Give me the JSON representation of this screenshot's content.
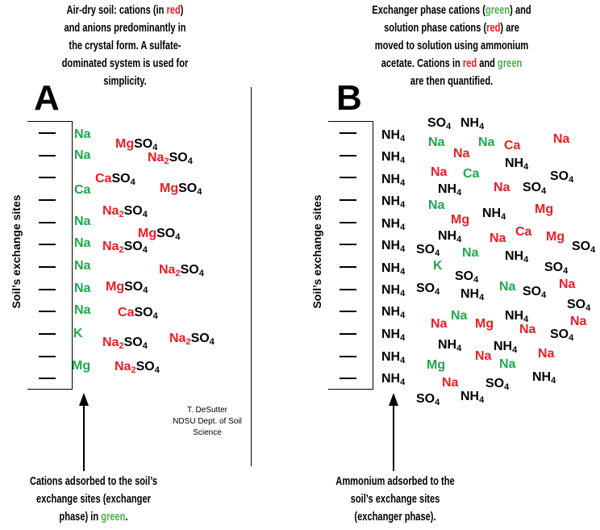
{
  "colors": {
    "red": "#ed1c24",
    "green": "#1ea84c",
    "black": "#000000",
    "green_text": "#4caf50"
  },
  "panel_a": {
    "letter": "A",
    "caption_top": [
      [
        [
          "Air-dry soil: cations (in ",
          "black"
        ],
        [
          "red",
          "red"
        ],
        [
          ")",
          "black"
        ]
      ],
      [
        [
          "and anions predominantly in",
          "black"
        ]
      ],
      [
        [
          "the crystal form. A sulfate-",
          "black"
        ]
      ],
      [
        [
          "dominated system is used for",
          "black"
        ]
      ],
      [
        [
          "simplicity.",
          "black"
        ]
      ]
    ],
    "axis_label": "Soil’s exchange sites",
    "caption_bottom": [
      [
        [
          "Cations adsorbed to the soil’s",
          "black"
        ]
      ],
      [
        [
          "exchange sites (exchanger",
          "black"
        ]
      ],
      [
        [
          "phase) in ",
          "black"
        ],
        [
          "green",
          "green_text"
        ],
        [
          ".",
          "black"
        ]
      ]
    ],
    "ions": [
      [
        [
          "Na",
          "green"
        ]
      ],
      [
        [
          "Mg",
          "red"
        ],
        [
          "SO",
          "black"
        ],
        [
          "4",
          "black",
          1
        ]
      ],
      [
        [
          "Na",
          "green"
        ]
      ],
      [
        [
          "Na",
          "red"
        ],
        [
          "2",
          "red",
          1
        ],
        [
          "SO",
          "black"
        ],
        [
          "4",
          "black",
          1
        ]
      ],
      [
        [
          "Ca",
          "red"
        ],
        [
          "SO",
          "black"
        ],
        [
          "4",
          "black",
          1
        ]
      ],
      [
        [
          "Ca",
          "green"
        ]
      ],
      [
        [
          "Mg",
          "red"
        ],
        [
          "SO",
          "black"
        ],
        [
          "4",
          "black",
          1
        ]
      ],
      [
        [
          "Na",
          "red"
        ],
        [
          "2",
          "red",
          1
        ],
        [
          "SO",
          "black"
        ],
        [
          "4",
          "black",
          1
        ]
      ],
      [
        [
          "Na",
          "green"
        ]
      ],
      [
        [
          "Mg",
          "red"
        ],
        [
          "SO",
          "black"
        ],
        [
          "4",
          "black",
          1
        ]
      ],
      [
        [
          "Na",
          "green"
        ]
      ],
      [
        [
          "Na",
          "red"
        ],
        [
          "2",
          "red",
          1
        ],
        [
          "SO",
          "black"
        ],
        [
          "4",
          "black",
          1
        ]
      ],
      [
        [
          "Na",
          "green"
        ]
      ],
      [
        [
          "Na",
          "red"
        ],
        [
          "2",
          "red",
          1
        ],
        [
          "SO",
          "black"
        ],
        [
          "4",
          "black",
          1
        ]
      ],
      [
        [
          "Na",
          "green"
        ]
      ],
      [
        [
          "Mg",
          "red"
        ],
        [
          "SO",
          "black"
        ],
        [
          "4",
          "black",
          1
        ]
      ],
      [
        [
          "Na",
          "green"
        ]
      ],
      [
        [
          "Ca",
          "red"
        ],
        [
          "SO",
          "black"
        ],
        [
          "4",
          "black",
          1
        ]
      ],
      [
        [
          "K",
          "green"
        ]
      ],
      [
        [
          "Na",
          "red"
        ],
        [
          "2",
          "red",
          1
        ],
        [
          "SO",
          "black"
        ],
        [
          "4",
          "black",
          1
        ]
      ],
      [
        [
          "Na",
          "red"
        ],
        [
          "2",
          "red",
          1
        ],
        [
          "SO",
          "black"
        ],
        [
          "4",
          "black",
          1
        ]
      ],
      [
        [
          "Mg",
          "green"
        ]
      ],
      [
        [
          "Na",
          "red"
        ],
        [
          "2",
          "red",
          1
        ],
        [
          "SO",
          "black"
        ],
        [
          "4",
          "black",
          1
        ]
      ]
    ]
  },
  "panel_b": {
    "letter": "B",
    "caption_top": [
      [
        [
          "Exchanger phase cations (",
          "black"
        ],
        [
          "green",
          "green_text"
        ],
        [
          ") and",
          "black"
        ]
      ],
      [
        [
          "solution phase cations (",
          "black"
        ],
        [
          "red",
          "red"
        ],
        [
          ") are",
          "black"
        ]
      ],
      [
        [
          "moved to solution using ammonium",
          "black"
        ]
      ],
      [
        [
          "acetate. Cations in ",
          "black"
        ],
        [
          "red",
          "red"
        ],
        [
          " and ",
          "black"
        ],
        [
          "green",
          "green_text"
        ]
      ],
      [
        [
          "are then quantified.",
          "black"
        ]
      ]
    ],
    "axis_label": "Soil’s exchange sites",
    "caption_bottom": [
      [
        [
          "Ammonium adsorbed to the",
          "black"
        ]
      ],
      [
        [
          "soil’s exchange sites",
          "black"
        ]
      ],
      [
        [
          "(exchanger phase).",
          "black"
        ]
      ]
    ],
    "adsorbed_ion": [
      [
        "NH",
        "black"
      ],
      [
        "4",
        "black",
        1
      ]
    ],
    "ions": [
      [
        [
          "SO",
          "black"
        ],
        [
          "4",
          "black",
          1
        ]
      ],
      [
        [
          "NH",
          "black"
        ],
        [
          "4",
          "black",
          1
        ]
      ],
      [
        [
          "Na",
          "green"
        ]
      ],
      [
        [
          "Na",
          "red"
        ]
      ],
      [
        [
          "Na",
          "green"
        ]
      ],
      [
        [
          "Ca",
          "red"
        ]
      ],
      [
        [
          "Na",
          "red"
        ]
      ],
      [
        [
          "NH",
          "black"
        ],
        [
          "4",
          "black",
          1
        ]
      ],
      [
        [
          "Na",
          "red"
        ]
      ],
      [
        [
          "Ca",
          "green"
        ]
      ],
      [
        [
          "SO",
          "black"
        ],
        [
          "4",
          "black",
          1
        ]
      ],
      [
        [
          "NH",
          "black"
        ],
        [
          "4",
          "black",
          1
        ]
      ],
      [
        [
          "Na",
          "red"
        ]
      ],
      [
        [
          "SO",
          "black"
        ],
        [
          "4",
          "black",
          1
        ]
      ],
      [
        [
          "Na",
          "green"
        ]
      ],
      [
        [
          "Mg",
          "red"
        ]
      ],
      [
        [
          "Mg",
          "red"
        ]
      ],
      [
        [
          "NH",
          "black"
        ],
        [
          "4",
          "black",
          1
        ]
      ],
      [
        [
          "NH",
          "black"
        ],
        [
          "4",
          "black",
          1
        ]
      ],
      [
        [
          "Ca",
          "red"
        ]
      ],
      [
        [
          "Na",
          "red"
        ]
      ],
      [
        [
          "Mg",
          "red"
        ]
      ],
      [
        [
          "SO",
          "black"
        ],
        [
          "4",
          "black",
          1
        ]
      ],
      [
        [
          "SO",
          "black"
        ],
        [
          "4",
          "black",
          1
        ]
      ],
      [
        [
          "Na",
          "green"
        ]
      ],
      [
        [
          "NH",
          "black"
        ],
        [
          "4",
          "black",
          1
        ]
      ],
      [
        [
          "K",
          "green"
        ]
      ],
      [
        [
          "SO",
          "black"
        ],
        [
          "4",
          "black",
          1
        ]
      ],
      [
        [
          "SO",
          "black"
        ],
        [
          "4",
          "black",
          1
        ]
      ],
      [
        [
          "Na",
          "green"
        ]
      ],
      [
        [
          "SO",
          "black"
        ],
        [
          "4",
          "black",
          1
        ]
      ],
      [
        [
          "Na",
          "red"
        ]
      ],
      [
        [
          "SO",
          "black"
        ],
        [
          "4",
          "black",
          1
        ]
      ],
      [
        [
          "NH",
          "black"
        ],
        [
          "4",
          "black",
          1
        ]
      ],
      [
        [
          "SO",
          "black"
        ],
        [
          "4",
          "black",
          1
        ]
      ],
      [
        [
          "Na",
          "green"
        ]
      ],
      [
        [
          "Na",
          "red"
        ]
      ],
      [
        [
          "Mg",
          "red"
        ]
      ],
      [
        [
          "NH",
          "black"
        ],
        [
          "4",
          "black",
          1
        ]
      ],
      [
        [
          "Na",
          "red"
        ]
      ],
      [
        [
          "Na",
          "red"
        ]
      ],
      [
        [
          "SO",
          "black"
        ],
        [
          "4",
          "black",
          1
        ]
      ],
      [
        [
          "NH",
          "black"
        ],
        [
          "4",
          "black",
          1
        ]
      ],
      [
        [
          "NH",
          "black"
        ],
        [
          "4",
          "black",
          1
        ]
      ],
      [
        [
          "Na",
          "red"
        ]
      ],
      [
        [
          "Na",
          "red"
        ]
      ],
      [
        [
          "Mg",
          "green"
        ]
      ],
      [
        [
          "Na",
          "green"
        ]
      ],
      [
        [
          "NH",
          "black"
        ],
        [
          "4",
          "black",
          1
        ]
      ],
      [
        [
          "Na",
          "red"
        ]
      ],
      [
        [
          "SO",
          "black"
        ],
        [
          "4",
          "black",
          1
        ]
      ],
      [
        [
          "SO",
          "black"
        ],
        [
          "4",
          "black",
          1
        ]
      ],
      [
        [
          "NH",
          "black"
        ],
        [
          "4",
          "black",
          1
        ]
      ]
    ]
  },
  "credit": [
    "T. DeSutter",
    "NDSU Dept. of Soil",
    "Science"
  ]
}
